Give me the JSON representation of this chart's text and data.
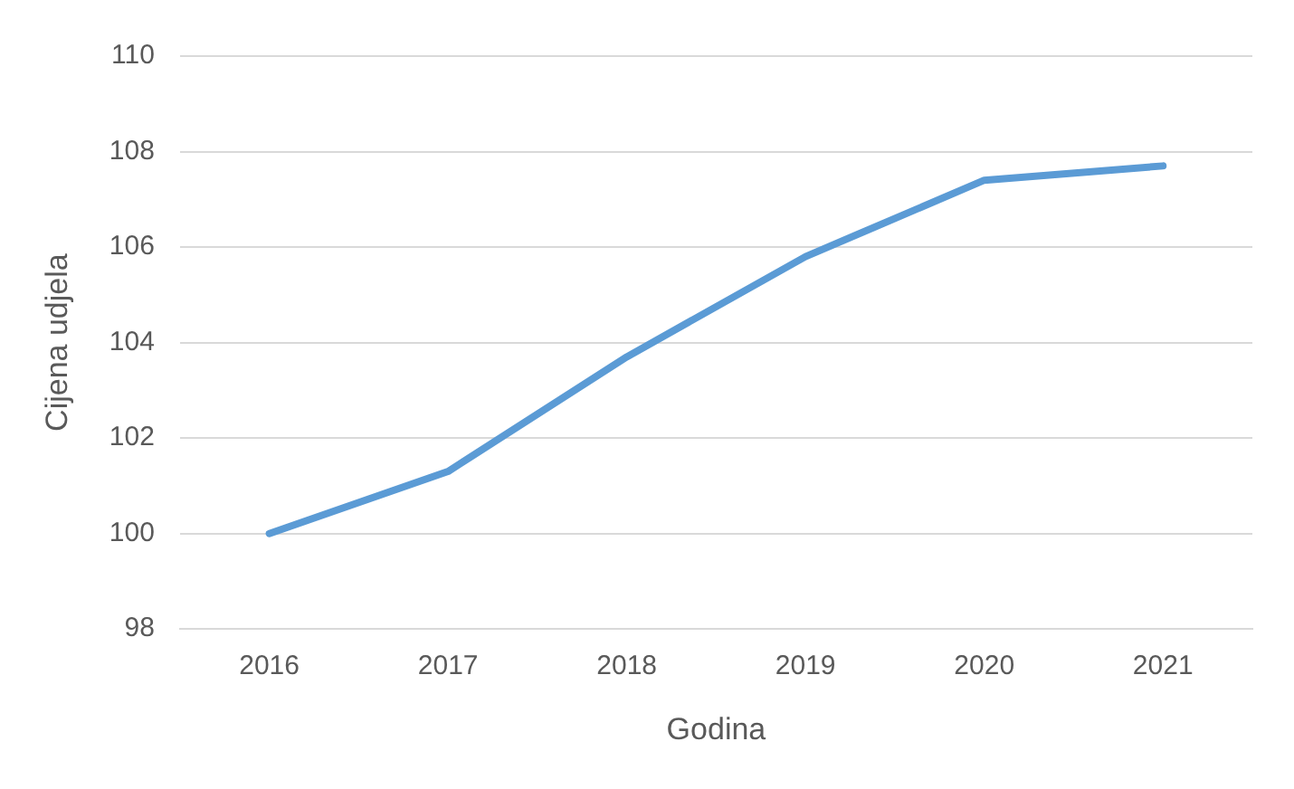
{
  "chart_data": {
    "type": "line",
    "xlabel": "Godina",
    "ylabel": "Cijena udjela",
    "categories": [
      "2016",
      "2017",
      "2018",
      "2019",
      "2020",
      "2021"
    ],
    "series": [
      {
        "color": "#5b9bd5",
        "values": [
          100,
          101.3,
          103.7,
          105.8,
          107.4,
          107.7
        ]
      }
    ],
    "ylim": [
      98,
      110
    ],
    "yticks": [
      98,
      100,
      102,
      104,
      106,
      108,
      110
    ],
    "grid": "y",
    "legend": false,
    "marker": "none",
    "line_style": "solid"
  }
}
